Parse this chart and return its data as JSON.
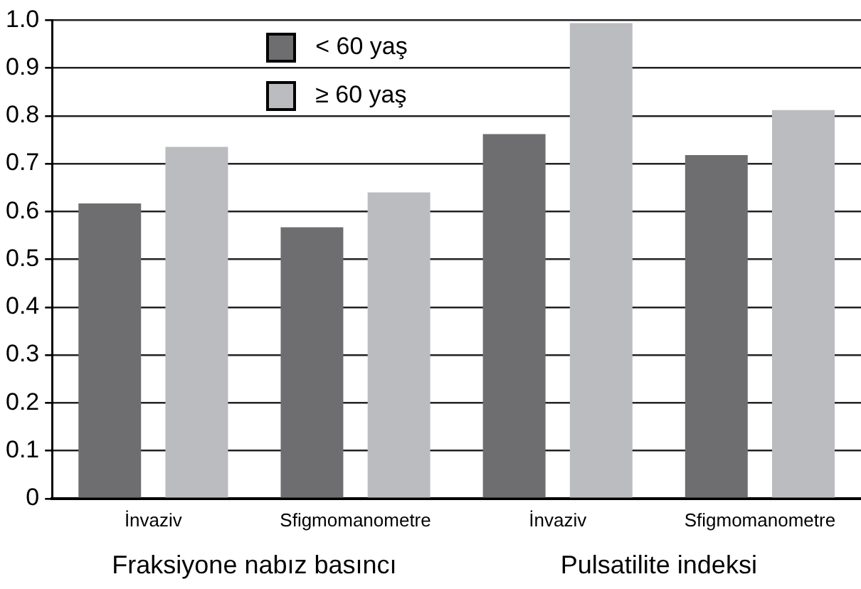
{
  "chart_data": {
    "type": "bar",
    "categories": [
      "İnvaziv",
      "Sfigmomanometre",
      "İnvaziv",
      "Sfigmomanometre"
    ],
    "series": [
      {
        "name": "< 60 yaş",
        "color": "#6e6e71",
        "values": [
          0.617,
          0.567,
          0.762,
          0.718
        ]
      },
      {
        "name": "≥ 60 yaş",
        "color": "#bbbcc0",
        "values": [
          0.735,
          0.64,
          0.994,
          0.812
        ]
      }
    ],
    "ylim": [
      0,
      1.0
    ],
    "yticks": [
      0,
      {
        "value": 0.1,
        "label": "0.1"
      },
      {
        "value": 0.2,
        "label": "0.2"
      },
      {
        "value": 0.3,
        "label": "0.3"
      },
      {
        "value": 0.4,
        "label": "0.4"
      },
      {
        "value": 0.5,
        "label": "0.5"
      },
      {
        "value": 0.6,
        "label": "0.6"
      },
      {
        "value": 0.7,
        "label": "0.7"
      },
      {
        "value": 0.8,
        "label": "0.8"
      },
      {
        "value": 0.9,
        "label": "0.9"
      },
      {
        "value": 1.0,
        "label": "1.0"
      }
    ],
    "grid": "y",
    "legend": "top left",
    "annotations": [
      "Fraksiyone nabız basıncı",
      "Pulsatilite indeksi"
    ]
  }
}
